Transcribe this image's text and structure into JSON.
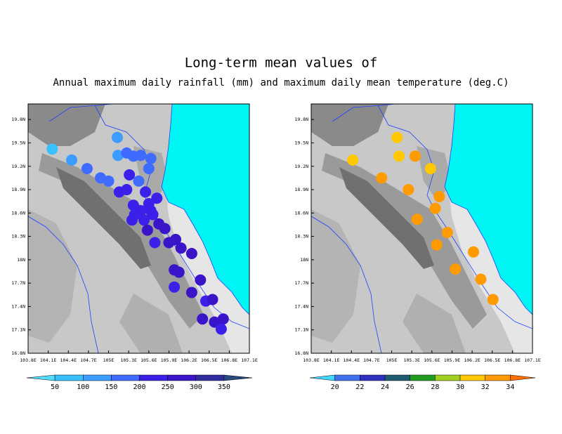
{
  "title": "Long-term mean values of",
  "subtitle": "Annual maximum daily rainfall (mm) and maximum daily mean temperature (deg.C)",
  "maps": [
    {
      "xlim": [
        103.8,
        107.1
      ],
      "ylim": [
        16.8,
        20
      ],
      "xticks": [
        {
          "value": 103.8,
          "label": "103.8E"
        },
        {
          "value": 104.1,
          "label": "104.1E"
        },
        {
          "value": 104.4,
          "label": "104.4E"
        },
        {
          "value": 104.7,
          "label": "104.7E"
        },
        {
          "value": 105,
          "label": "105E"
        },
        {
          "value": 105.3,
          "label": "105.3E"
        },
        {
          "value": 105.6,
          "label": "105.6E"
        },
        {
          "value": 105.9,
          "label": "105.9E"
        },
        {
          "value": 106.2,
          "label": "106.2E"
        },
        {
          "value": 106.5,
          "label": "106.5E"
        },
        {
          "value": 106.8,
          "label": "106.8E"
        },
        {
          "value": 107.1,
          "label": "107.1E"
        }
      ],
      "yticks": [
        {
          "value": 19.8,
          "label": "19.8N"
        },
        {
          "value": 19.5,
          "label": "19.5N"
        },
        {
          "value": 19.2,
          "label": "19.2N"
        },
        {
          "value": 18.9,
          "label": "18.9N"
        },
        {
          "value": 18.6,
          "label": "18.6N"
        },
        {
          "value": 18.3,
          "label": "18.3N"
        },
        {
          "value": 18,
          "label": "18N"
        },
        {
          "value": 17.7,
          "label": "17.7N"
        },
        {
          "value": 17.4,
          "label": "17.4N"
        },
        {
          "value": 17.1,
          "label": "17.1N"
        },
        {
          "value": 16.8,
          "label": "16.8N"
        }
      ],
      "levels": [
        50,
        100,
        150,
        200,
        250,
        300,
        350
      ],
      "colors": [
        "#55ddff",
        "#38c0ff",
        "#3c9cff",
        "#3f6cff",
        "#3a20e8",
        "#3a14c8",
        "#302ca0",
        "#284a80",
        "#1e5a68"
      ],
      "points": [
        {
          "lon": 104.16,
          "lat": 19.42,
          "value": 60
        },
        {
          "lon": 104.45,
          "lat": 19.28,
          "value": 110
        },
        {
          "lon": 104.68,
          "lat": 19.17,
          "value": 160
        },
        {
          "lon": 104.88,
          "lat": 19.05,
          "value": 170
        },
        {
          "lon": 105.0,
          "lat": 19.01,
          "value": 170
        },
        {
          "lon": 105.13,
          "lat": 19.57,
          "value": 130
        },
        {
          "lon": 105.14,
          "lat": 19.34,
          "value": 140
        },
        {
          "lon": 105.27,
          "lat": 19.37,
          "value": 150
        },
        {
          "lon": 105.37,
          "lat": 19.33,
          "value": 150
        },
        {
          "lon": 105.48,
          "lat": 19.34,
          "value": 180
        },
        {
          "lon": 105.63,
          "lat": 19.3,
          "value": 150
        },
        {
          "lon": 105.6,
          "lat": 19.17,
          "value": 160
        },
        {
          "lon": 105.45,
          "lat": 19.01,
          "value": 170
        },
        {
          "lon": 105.31,
          "lat": 19.09,
          "value": 210
        },
        {
          "lon": 105.16,
          "lat": 18.87,
          "value": 230
        },
        {
          "lon": 105.27,
          "lat": 18.9,
          "value": 230
        },
        {
          "lon": 105.55,
          "lat": 18.87,
          "value": 230
        },
        {
          "lon": 105.72,
          "lat": 18.79,
          "value": 230
        },
        {
          "lon": 105.6,
          "lat": 18.72,
          "value": 220
        },
        {
          "lon": 105.37,
          "lat": 18.7,
          "value": 240
        },
        {
          "lon": 105.39,
          "lat": 18.58,
          "value": 240
        },
        {
          "lon": 105.48,
          "lat": 18.63,
          "value": 240
        },
        {
          "lon": 105.63,
          "lat": 18.63,
          "value": 230
        },
        {
          "lon": 105.35,
          "lat": 18.51,
          "value": 240
        },
        {
          "lon": 105.53,
          "lat": 18.51,
          "value": 240
        },
        {
          "lon": 105.66,
          "lat": 18.58,
          "value": 230
        },
        {
          "lon": 105.75,
          "lat": 18.46,
          "value": 280
        },
        {
          "lon": 105.84,
          "lat": 18.4,
          "value": 280
        },
        {
          "lon": 105.58,
          "lat": 18.38,
          "value": 250
        },
        {
          "lon": 105.69,
          "lat": 18.22,
          "value": 240
        },
        {
          "lon": 105.9,
          "lat": 18.22,
          "value": 260
        },
        {
          "lon": 106.0,
          "lat": 18.26,
          "value": 280
        },
        {
          "lon": 106.08,
          "lat": 18.15,
          "value": 270
        },
        {
          "lon": 106.24,
          "lat": 18.08,
          "value": 260
        },
        {
          "lon": 105.98,
          "lat": 17.87,
          "value": 250
        },
        {
          "lon": 106.05,
          "lat": 17.84,
          "value": 260
        },
        {
          "lon": 105.98,
          "lat": 17.65,
          "value": 240
        },
        {
          "lon": 106.24,
          "lat": 17.58,
          "value": 250
        },
        {
          "lon": 106.37,
          "lat": 17.74,
          "value": 250
        },
        {
          "lon": 106.45,
          "lat": 17.47,
          "value": 240
        },
        {
          "lon": 106.55,
          "lat": 17.49,
          "value": 250
        },
        {
          "lon": 106.4,
          "lat": 17.24,
          "value": 250
        },
        {
          "lon": 106.58,
          "lat": 17.2,
          "value": 250
        },
        {
          "lon": 106.71,
          "lat": 17.24,
          "value": 260
        },
        {
          "lon": 106.68,
          "lat": 17.11,
          "value": 240
        }
      ]
    },
    {
      "xlim": [
        103.8,
        107.1
      ],
      "ylim": [
        16.8,
        20
      ],
      "xticks": [
        {
          "value": 103.8,
          "label": "103.8E"
        },
        {
          "value": 104.1,
          "label": "104.1E"
        },
        {
          "value": 104.4,
          "label": "104.4E"
        },
        {
          "value": 104.7,
          "label": "104.7E"
        },
        {
          "value": 105,
          "label": "105E"
        },
        {
          "value": 105.3,
          "label": "105.3E"
        },
        {
          "value": 105.6,
          "label": "105.6E"
        },
        {
          "value": 105.9,
          "label": "105.9E"
        },
        {
          "value": 106.2,
          "label": "106.2E"
        },
        {
          "value": 106.5,
          "label": "106.5E"
        },
        {
          "value": 106.8,
          "label": "106.8E"
        },
        {
          "value": 107.1,
          "label": "107.1E"
        }
      ],
      "yticks": [
        {
          "value": 19.8,
          "label": "19.8N"
        },
        {
          "value": 19.5,
          "label": "19.5N"
        },
        {
          "value": 19.2,
          "label": "19.2N"
        },
        {
          "value": 18.9,
          "label": "18.9N"
        },
        {
          "value": 18.6,
          "label": "18.6N"
        },
        {
          "value": 18.3,
          "label": "18.3N"
        },
        {
          "value": 18,
          "label": "18N"
        },
        {
          "value": 17.7,
          "label": "17.7N"
        },
        {
          "value": 17.4,
          "label": "17.4N"
        },
        {
          "value": 17.1,
          "label": "17.1N"
        },
        {
          "value": 16.8,
          "label": "16.8N"
        }
      ],
      "levels": [
        20,
        22,
        24,
        26,
        28,
        30,
        32,
        34
      ],
      "colors": [
        "#40d8ff",
        "#4070f0",
        "#3030c0",
        "#1e5a70",
        "#209a20",
        "#a0d020",
        "#ffc800",
        "#ff9a00",
        "#ff7000"
      ],
      "points": [
        {
          "lon": 104.42,
          "lat": 19.28,
          "value": 30.5
        },
        {
          "lon": 104.85,
          "lat": 19.05,
          "value": 32.5
        },
        {
          "lon": 105.08,
          "lat": 19.57,
          "value": 30.5
        },
        {
          "lon": 105.11,
          "lat": 19.33,
          "value": 30.5
        },
        {
          "lon": 105.35,
          "lat": 19.33,
          "value": 32.5
        },
        {
          "lon": 105.58,
          "lat": 19.17,
          "value": 30.5
        },
        {
          "lon": 105.25,
          "lat": 18.9,
          "value": 32.5
        },
        {
          "lon": 105.71,
          "lat": 18.81,
          "value": 32.5
        },
        {
          "lon": 105.65,
          "lat": 18.66,
          "value": 32.5
        },
        {
          "lon": 105.38,
          "lat": 18.52,
          "value": 32.5
        },
        {
          "lon": 105.83,
          "lat": 18.35,
          "value": 32.5
        },
        {
          "lon": 105.67,
          "lat": 18.19,
          "value": 32.5
        },
        {
          "lon": 106.22,
          "lat": 18.1,
          "value": 32.5
        },
        {
          "lon": 105.95,
          "lat": 17.88,
          "value": 32.5
        },
        {
          "lon": 106.33,
          "lat": 17.75,
          "value": 32.5
        },
        {
          "lon": 106.51,
          "lat": 17.49,
          "value": 32.5
        }
      ]
    }
  ]
}
